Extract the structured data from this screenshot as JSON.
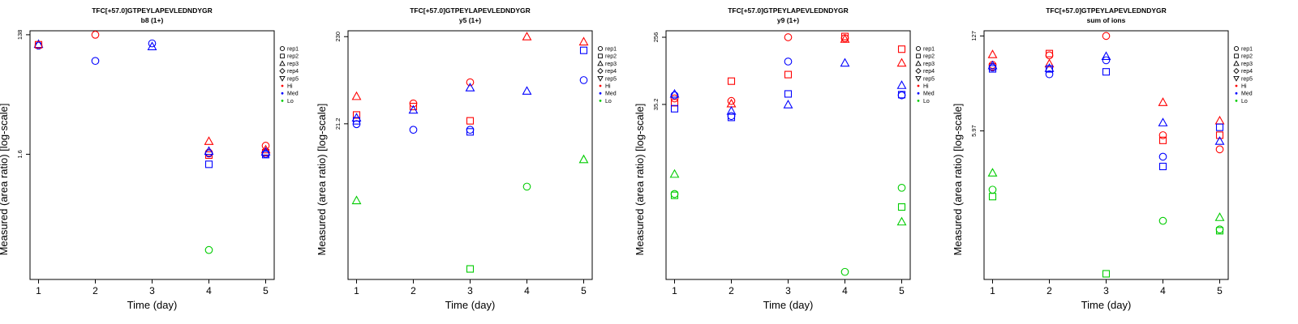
{
  "panel_count": 4,
  "chart_data": [
    {
      "type": "scatter",
      "title": "TFC[+57.0]GTPEYLAPEVLEDNDYGR",
      "subtitle": "b8 (1+)",
      "xlabel": "Time (day)",
      "ylabel": "Measured (area ratio) [log-scale]",
      "log_scale_y": true,
      "x_ticks": [
        1,
        2,
        3,
        4,
        5
      ],
      "xlim": [
        0.85,
        5.15
      ],
      "y_ticks": [
        {
          "value": 138,
          "label": "138"
        },
        {
          "value": 1.6,
          "label": "1.6"
        }
      ],
      "ylim": [
        0.015,
        160
      ],
      "legend": {
        "position": "right",
        "items": [
          {
            "label": "rep1",
            "symbol": "circle",
            "color": "#000000"
          },
          {
            "label": "rep2",
            "symbol": "square",
            "color": "#000000"
          },
          {
            "label": "rep3",
            "symbol": "triangle",
            "color": "#000000"
          },
          {
            "label": "rep4",
            "symbol": "diamond",
            "color": "#000000"
          },
          {
            "label": "rep5",
            "symbol": "triangle-down",
            "color": "#000000"
          },
          {
            "label": "Hi",
            "symbol": "dot",
            "color": "#ff0000"
          },
          {
            "label": "Med",
            "symbol": "dot",
            "color": "#0000ff"
          },
          {
            "label": "Lo",
            "symbol": "dot",
            "color": "#00cc00"
          }
        ]
      },
      "points": [
        {
          "x": 1,
          "y": 92,
          "rep": "rep1",
          "level": "Med"
        },
        {
          "x": 1,
          "y": 97,
          "rep": "rep3",
          "level": "Med"
        },
        {
          "x": 1,
          "y": 95,
          "rep": "rep2",
          "level": "Red"
        },
        {
          "x": 2,
          "y": 138,
          "rep": "rep1",
          "level": "Hi"
        },
        {
          "x": 2,
          "y": 52,
          "rep": "rep1",
          "level": "Med"
        },
        {
          "x": 3,
          "y": 100,
          "rep": "rep1",
          "level": "Med"
        },
        {
          "x": 3,
          "y": 89,
          "rep": "rep3",
          "level": "Med"
        },
        {
          "x": 4,
          "y": 2.6,
          "rep": "rep3",
          "level": "Hi"
        },
        {
          "x": 4,
          "y": 1.7,
          "rep": "rep1",
          "level": "Hi"
        },
        {
          "x": 4,
          "y": 1.55,
          "rep": "rep2",
          "level": "Hi"
        },
        {
          "x": 4,
          "y": 1.8,
          "rep": "rep3",
          "level": "Med"
        },
        {
          "x": 4,
          "y": 1.65,
          "rep": "rep1",
          "level": "Med"
        },
        {
          "x": 4,
          "y": 1.1,
          "rep": "rep2",
          "level": "Med"
        },
        {
          "x": 4,
          "y": 0.045,
          "rep": "rep1",
          "level": "Lo"
        },
        {
          "x": 5,
          "y": 2.2,
          "rep": "rep1",
          "level": "Hi"
        },
        {
          "x": 5,
          "y": 1.9,
          "rep": "rep3",
          "level": "Hi"
        },
        {
          "x": 5,
          "y": 1.7,
          "rep": "rep2",
          "level": "Hi"
        },
        {
          "x": 5,
          "y": 1.75,
          "rep": "rep3",
          "level": "Med"
        },
        {
          "x": 5,
          "y": 1.62,
          "rep": "rep1",
          "level": "Med"
        },
        {
          "x": 5,
          "y": 1.58,
          "rep": "rep2",
          "level": "Med"
        }
      ]
    },
    {
      "type": "scatter",
      "title": "TFC[+57.0]GTPEYLAPEVLEDNDYGR",
      "subtitle": "y5 (1+)",
      "xlabel": "Time (day)",
      "ylabel": "Measured (area ratio) [log-scale]",
      "log_scale_y": true,
      "x_ticks": [
        1,
        2,
        3,
        4,
        5
      ],
      "xlim": [
        0.85,
        5.15
      ],
      "y_ticks": [
        {
          "value": 230,
          "label": "230"
        },
        {
          "value": 21.2,
          "label": "21.2"
        }
      ],
      "ylim": [
        0.3,
        270
      ],
      "legend": {
        "position": "right",
        "items": [
          {
            "label": "rep1",
            "symbol": "circle",
            "color": "#000000"
          },
          {
            "label": "rep2",
            "symbol": "square",
            "color": "#000000"
          },
          {
            "label": "rep3",
            "symbol": "triangle",
            "color": "#000000"
          },
          {
            "label": "rep4",
            "symbol": "diamond",
            "color": "#000000"
          },
          {
            "label": "rep5",
            "symbol": "triangle-down",
            "color": "#000000"
          },
          {
            "label": "Hi",
            "symbol": "dot",
            "color": "#ff0000"
          },
          {
            "label": "Med",
            "symbol": "dot",
            "color": "#0000ff"
          },
          {
            "label": "Lo",
            "symbol": "dot",
            "color": "#00cc00"
          }
        ]
      },
      "points": [
        {
          "x": 1,
          "y": 45,
          "rep": "rep3",
          "level": "Hi"
        },
        {
          "x": 1,
          "y": 27,
          "rep": "rep2",
          "level": "Hi"
        },
        {
          "x": 1,
          "y": 21,
          "rep": "rep1",
          "level": "Med"
        },
        {
          "x": 1,
          "y": 23,
          "rep": "rep2",
          "level": "Med"
        },
        {
          "x": 1,
          "y": 25,
          "rep": "rep3",
          "level": "Med"
        },
        {
          "x": 1,
          "y": 2.6,
          "rep": "rep3",
          "level": "Lo"
        },
        {
          "x": 2,
          "y": 37,
          "rep": "rep1",
          "level": "Hi"
        },
        {
          "x": 2,
          "y": 34,
          "rep": "rep2",
          "level": "Hi"
        },
        {
          "x": 2,
          "y": 31,
          "rep": "rep3",
          "level": "Med"
        },
        {
          "x": 2,
          "y": 18,
          "rep": "rep1",
          "level": "Med"
        },
        {
          "x": 3,
          "y": 66,
          "rep": "rep1",
          "level": "Hi"
        },
        {
          "x": 3,
          "y": 23,
          "rep": "rep2",
          "level": "Hi"
        },
        {
          "x": 3,
          "y": 57,
          "rep": "rep3",
          "level": "Med"
        },
        {
          "x": 3,
          "y": 18,
          "rep": "rep1",
          "level": "Med"
        },
        {
          "x": 3,
          "y": 17,
          "rep": "rep2",
          "level": "Med"
        },
        {
          "x": 3,
          "y": 0.4,
          "rep": "rep2",
          "level": "Lo"
        },
        {
          "x": 4,
          "y": 230,
          "rep": "rep3",
          "level": "Hi"
        },
        {
          "x": 4,
          "y": 52,
          "rep": "rep3",
          "level": "Med"
        },
        {
          "x": 4,
          "y": 3.8,
          "rep": "rep1",
          "level": "Lo"
        },
        {
          "x": 5,
          "y": 200,
          "rep": "rep3",
          "level": "Hi"
        },
        {
          "x": 5,
          "y": 158,
          "rep": "rep2",
          "level": "Med"
        },
        {
          "x": 5,
          "y": 70,
          "rep": "rep1",
          "level": "Med"
        },
        {
          "x": 5,
          "y": 8,
          "rep": "rep3",
          "level": "Lo"
        }
      ]
    },
    {
      "type": "scatter",
      "title": "TFC[+57.0]GTPEYLAPEVLEDNDYGR",
      "subtitle": "y9 (1+)",
      "xlabel": "Time (day)",
      "ylabel": "Measured (area ratio) [log-scale]",
      "log_scale_y": true,
      "x_ticks": [
        1,
        2,
        3,
        4,
        5
      ],
      "xlim": [
        0.85,
        5.15
      ],
      "y_ticks": [
        {
          "value": 256,
          "label": "256"
        },
        {
          "value": 35.2,
          "label": "35.2"
        }
      ],
      "ylim": [
        0.2,
        310
      ],
      "legend": {
        "position": "right",
        "items": [
          {
            "label": "rep1",
            "symbol": "circle",
            "color": "#000000"
          },
          {
            "label": "rep2",
            "symbol": "square",
            "color": "#000000"
          },
          {
            "label": "rep3",
            "symbol": "triangle",
            "color": "#000000"
          },
          {
            "label": "rep4",
            "symbol": "diamond",
            "color": "#000000"
          },
          {
            "label": "rep5",
            "symbol": "triangle-down",
            "color": "#000000"
          },
          {
            "label": "Hi",
            "symbol": "dot",
            "color": "#ff0000"
          },
          {
            "label": "Med",
            "symbol": "dot",
            "color": "#0000ff"
          },
          {
            "label": "Lo",
            "symbol": "dot",
            "color": "#00cc00"
          }
        ]
      },
      "points": [
        {
          "x": 1,
          "y": 42,
          "rep": "rep1",
          "level": "Hi"
        },
        {
          "x": 1,
          "y": 37,
          "rep": "rep2",
          "level": "Hi"
        },
        {
          "x": 1,
          "y": 48,
          "rep": "rep3",
          "level": "Med"
        },
        {
          "x": 1,
          "y": 46,
          "rep": "rep1",
          "level": "Med"
        },
        {
          "x": 1,
          "y": 31,
          "rep": "rep2",
          "level": "Med"
        },
        {
          "x": 1,
          "y": 4.5,
          "rep": "rep3",
          "level": "Lo"
        },
        {
          "x": 1,
          "y": 2.5,
          "rep": "rep1",
          "level": "Lo"
        },
        {
          "x": 1,
          "y": 2.4,
          "rep": "rep2",
          "level": "Lo"
        },
        {
          "x": 2,
          "y": 70,
          "rep": "rep2",
          "level": "Hi"
        },
        {
          "x": 2,
          "y": 39,
          "rep": "rep1",
          "level": "Hi"
        },
        {
          "x": 2,
          "y": 36,
          "rep": "rep3",
          "level": "Hi"
        },
        {
          "x": 2,
          "y": 29,
          "rep": "rep3",
          "level": "Med"
        },
        {
          "x": 2,
          "y": 25,
          "rep": "rep1",
          "level": "Med"
        },
        {
          "x": 2,
          "y": 24,
          "rep": "rep2",
          "level": "Med"
        },
        {
          "x": 3,
          "y": 256,
          "rep": "rep1",
          "level": "Hi"
        },
        {
          "x": 3,
          "y": 85,
          "rep": "rep2",
          "level": "Hi"
        },
        {
          "x": 3,
          "y": 125,
          "rep": "rep1",
          "level": "Med"
        },
        {
          "x": 3,
          "y": 48,
          "rep": "rep2",
          "level": "Med"
        },
        {
          "x": 3,
          "y": 35,
          "rep": "rep3",
          "level": "Med"
        },
        {
          "x": 4,
          "y": 262,
          "rep": "rep2",
          "level": "Hi"
        },
        {
          "x": 4,
          "y": 243,
          "rep": "rep3",
          "level": "Hi"
        },
        {
          "x": 4,
          "y": 249,
          "rep": "rep1",
          "level": "Hi"
        },
        {
          "x": 4,
          "y": 120,
          "rep": "rep3",
          "level": "Med"
        },
        {
          "x": 4,
          "y": 0.25,
          "rep": "rep1",
          "level": "Lo"
        },
        {
          "x": 5,
          "y": 180,
          "rep": "rep2",
          "level": "Hi"
        },
        {
          "x": 5,
          "y": 120,
          "rep": "rep3",
          "level": "Hi"
        },
        {
          "x": 5,
          "y": 62,
          "rep": "rep3",
          "level": "Med"
        },
        {
          "x": 5,
          "y": 46,
          "rep": "rep1",
          "level": "Med"
        },
        {
          "x": 5,
          "y": 47,
          "rep": "rep2",
          "level": "Med"
        },
        {
          "x": 5,
          "y": 3.0,
          "rep": "rep1",
          "level": "Lo"
        },
        {
          "x": 5,
          "y": 1.7,
          "rep": "rep2",
          "level": "Lo"
        },
        {
          "x": 5,
          "y": 1.1,
          "rep": "rep3",
          "level": "Lo"
        }
      ]
    },
    {
      "type": "scatter",
      "title": "TFC[+57.0]GTPEYLAPEVLEDNDYGR",
      "subtitle": "sum of ions",
      "xlabel": "Time (day)",
      "ylabel": "Measured (area ratio) [log-scale]",
      "log_scale_y": true,
      "x_ticks": [
        1,
        2,
        3,
        4,
        5
      ],
      "xlim": [
        0.85,
        5.15
      ],
      "y_ticks": [
        {
          "value": 127,
          "label": "127"
        },
        {
          "value": 5.97,
          "label": "5.97"
        }
      ],
      "ylim": [
        0.05,
        150
      ],
      "legend": {
        "position": "right",
        "items": [
          {
            "label": "rep1",
            "symbol": "circle",
            "color": "#000000"
          },
          {
            "label": "rep2",
            "symbol": "square",
            "color": "#000000"
          },
          {
            "label": "rep3",
            "symbol": "triangle",
            "color": "#000000"
          },
          {
            "label": "rep4",
            "symbol": "diamond",
            "color": "#000000"
          },
          {
            "label": "rep5",
            "symbol": "triangle-down",
            "color": "#000000"
          },
          {
            "label": "Hi",
            "symbol": "dot",
            "color": "#ff0000"
          },
          {
            "label": "Med",
            "symbol": "dot",
            "color": "#0000ff"
          },
          {
            "label": "Lo",
            "symbol": "dot",
            "color": "#00cc00"
          }
        ]
      },
      "points": [
        {
          "x": 1,
          "y": 70,
          "rep": "rep3",
          "level": "Hi"
        },
        {
          "x": 1,
          "y": 50,
          "rep": "rep1",
          "level": "Hi"
        },
        {
          "x": 1,
          "y": 47,
          "rep": "rep2",
          "level": "Hi"
        },
        {
          "x": 1,
          "y": 49,
          "rep": "rep3",
          "level": "Med"
        },
        {
          "x": 1,
          "y": 46,
          "rep": "rep1",
          "level": "Med"
        },
        {
          "x": 1,
          "y": 44,
          "rep": "rep2",
          "level": "Med"
        },
        {
          "x": 1,
          "y": 1.55,
          "rep": "rep3",
          "level": "Lo"
        },
        {
          "x": 1,
          "y": 0.9,
          "rep": "rep1",
          "level": "Lo"
        },
        {
          "x": 1,
          "y": 0.72,
          "rep": "rep2",
          "level": "Lo"
        },
        {
          "x": 2,
          "y": 72,
          "rep": "rep2",
          "level": "Hi"
        },
        {
          "x": 2,
          "y": 68,
          "rep": "rep1",
          "level": "Hi"
        },
        {
          "x": 2,
          "y": 52,
          "rep": "rep3",
          "level": "Hi"
        },
        {
          "x": 2,
          "y": 45,
          "rep": "rep3",
          "level": "Med"
        },
        {
          "x": 2,
          "y": 44,
          "rep": "rep2",
          "level": "Med"
        },
        {
          "x": 2,
          "y": 37,
          "rep": "rep1",
          "level": "Med"
        },
        {
          "x": 3,
          "y": 127,
          "rep": "rep1",
          "level": "Hi"
        },
        {
          "x": 3,
          "y": 58,
          "rep": "rep1",
          "level": "Med"
        },
        {
          "x": 3,
          "y": 66,
          "rep": "rep3",
          "level": "Med"
        },
        {
          "x": 3,
          "y": 40,
          "rep": "rep2",
          "level": "Med"
        },
        {
          "x": 3,
          "y": 0.06,
          "rep": "rep2",
          "level": "Lo"
        },
        {
          "x": 4,
          "y": 15,
          "rep": "rep3",
          "level": "Hi"
        },
        {
          "x": 4,
          "y": 5.2,
          "rep": "rep1",
          "level": "Hi"
        },
        {
          "x": 4,
          "y": 4.4,
          "rep": "rep2",
          "level": "Hi"
        },
        {
          "x": 4,
          "y": 7.8,
          "rep": "rep3",
          "level": "Med"
        },
        {
          "x": 4,
          "y": 2.6,
          "rep": "rep1",
          "level": "Med"
        },
        {
          "x": 4,
          "y": 1.9,
          "rep": "rep2",
          "level": "Med"
        },
        {
          "x": 4,
          "y": 0.33,
          "rep": "rep1",
          "level": "Lo"
        },
        {
          "x": 5,
          "y": 8.3,
          "rep": "rep3",
          "level": "Hi"
        },
        {
          "x": 5,
          "y": 5.2,
          "rep": "rep2",
          "level": "Hi"
        },
        {
          "x": 5,
          "y": 3.3,
          "rep": "rep1",
          "level": "Hi"
        },
        {
          "x": 5,
          "y": 6.7,
          "rep": "rep2",
          "level": "Med"
        },
        {
          "x": 5,
          "y": 4.3,
          "rep": "rep3",
          "level": "Med"
        },
        {
          "x": 5,
          "y": 0.37,
          "rep": "rep3",
          "level": "Lo"
        },
        {
          "x": 5,
          "y": 0.25,
          "rep": "rep1",
          "level": "Lo"
        },
        {
          "x": 5,
          "y": 0.24,
          "rep": "rep2",
          "level": "Lo"
        }
      ]
    }
  ],
  "level_colors": {
    "Hi": "#ff0000",
    "Med": "#0000ff",
    "Lo": "#00cc00",
    "Red": "#ff0000"
  }
}
